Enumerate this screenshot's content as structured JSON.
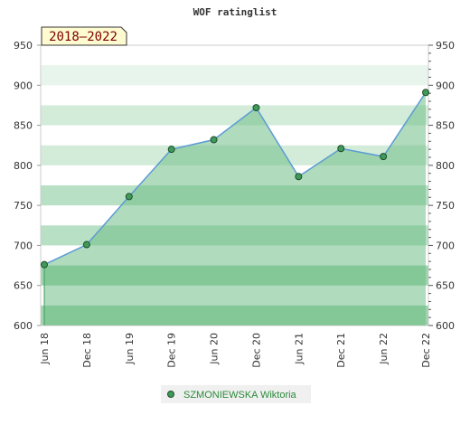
{
  "chart_data": {
    "type": "area",
    "title": "WOF ratinglist",
    "badge": "2018–2022",
    "x": [
      "Jun 18",
      "Dec 18",
      "Jun 19",
      "Dec 19",
      "Jun 20",
      "Dec 20",
      "Jun 21",
      "Dec 21",
      "Jun 22",
      "Dec 22"
    ],
    "series": [
      {
        "name": "SZMONIEWSKA Wiktoria",
        "values": [
          676,
          701,
          761,
          820,
          832,
          872,
          786,
          821,
          811,
          891
        ]
      }
    ],
    "ylim": [
      600,
      950
    ],
    "yticks": [
      600,
      650,
      700,
      750,
      800,
      850,
      900,
      950
    ],
    "grid": true,
    "legend": "bottom-center",
    "colors": {
      "line": "#5b9bd5",
      "fill": "#6fbe86",
      "marker": "#3f9a5a",
      "badge_bg": "#fffbd0",
      "legend_bg": "#f0f0f0",
      "legend_text": "#2a8a3a"
    }
  }
}
